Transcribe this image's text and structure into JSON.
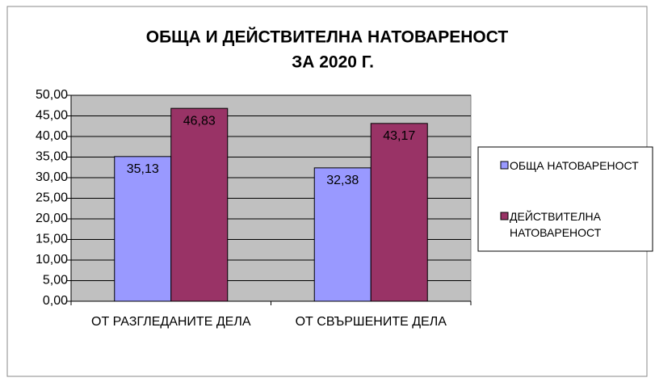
{
  "chart_data": {
    "type": "bar",
    "title": [
      "ОБЩА И ДЕЙСТВИТЕЛНА НАТОВАРЕНОСТ",
      "ЗА 2020 Г."
    ],
    "categories": [
      "ОТ РАЗГЛЕДАНИТЕ ДЕЛА",
      "ОТ СВЪРШЕНИТЕ ДЕЛА"
    ],
    "series": [
      {
        "name": "ОБЩА НАТОВАРЕНОСТ",
        "color": "#9999ff",
        "values": [
          35.13,
          32.38
        ],
        "value_labels": [
          "35,13",
          "32,38"
        ]
      },
      {
        "name": "ДЕЙСТВИТЕЛНА НАТОВАРЕНОСТ",
        "color": "#993366",
        "values": [
          46.83,
          43.17
        ],
        "value_labels": [
          "46,83",
          "43,17"
        ]
      }
    ],
    "ylim": [
      0,
      50
    ],
    "yticks": [
      {
        "value": 0,
        "label": "0,00"
      },
      {
        "value": 5,
        "label": "5,00"
      },
      {
        "value": 10,
        "label": "10,00"
      },
      {
        "value": 15,
        "label": "15,00"
      },
      {
        "value": 20,
        "label": "20,00"
      },
      {
        "value": 25,
        "label": "25,00"
      },
      {
        "value": 30,
        "label": "30,00"
      },
      {
        "value": 35,
        "label": "35,00"
      },
      {
        "value": 40,
        "label": "40,00"
      },
      {
        "value": 45,
        "label": "45,00"
      },
      {
        "value": 50,
        "label": "50,00"
      }
    ],
    "grid": true,
    "plot_background": "#c0c0c0",
    "legend": "right"
  }
}
